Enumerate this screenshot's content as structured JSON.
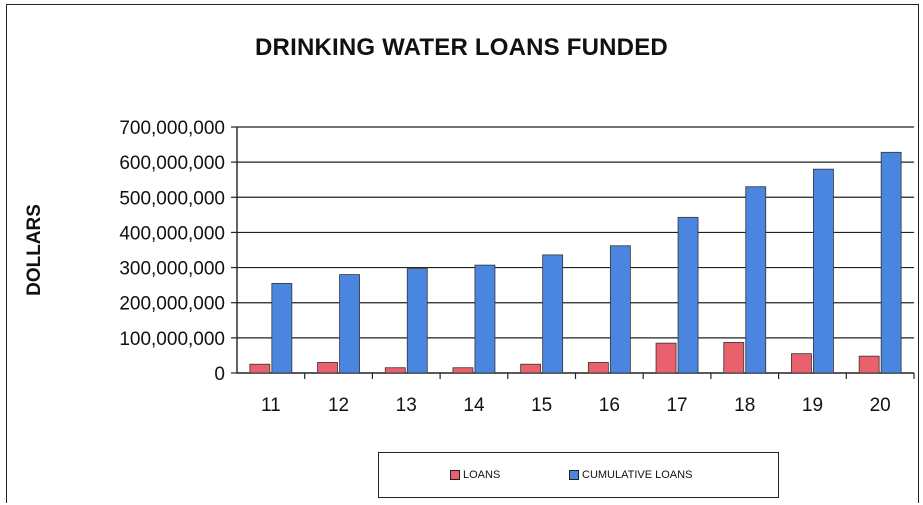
{
  "chart_data": {
    "type": "bar",
    "title": "DRINKING WATER LOANS FUNDED",
    "xlabel": "",
    "ylabel": "DOLLARS",
    "categories": [
      "11",
      "12",
      "13",
      "14",
      "15",
      "16",
      "17",
      "18",
      "19",
      "20"
    ],
    "series": [
      {
        "name": "LOANS",
        "color": "#e8616d",
        "values": [
          25000000,
          30000000,
          15000000,
          15000000,
          25000000,
          30000000,
          85000000,
          87000000,
          55000000,
          48000000
        ]
      },
      {
        "name": "CUMULATIVE LOANS",
        "color": "#4a86e0",
        "values": [
          255000000,
          280000000,
          297000000,
          307000000,
          336000000,
          362000000,
          443000000,
          530000000,
          580000000,
          628000000
        ]
      }
    ],
    "ylim": [
      0,
      700000000
    ],
    "yticks": [
      "0",
      "100,000,000",
      "200,000,000",
      "300,000,000",
      "400,000,000",
      "500,000,000",
      "600,000,000",
      "700,000,000"
    ],
    "grid": true,
    "legend_position": "bottom"
  }
}
